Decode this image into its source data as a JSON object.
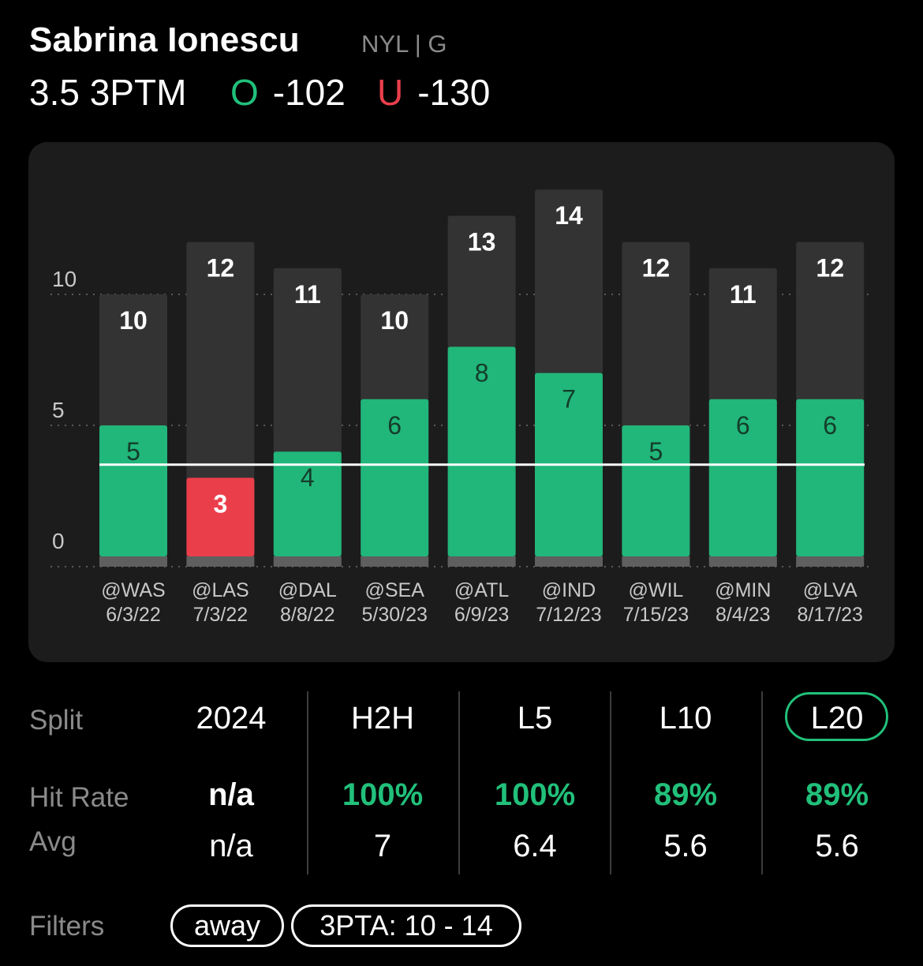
{
  "header": {
    "player_name": "Sabrina Ionescu",
    "team_pos": "NYL | G",
    "line": "3.5 3PTM",
    "over_glyph": "O",
    "over_odds": "-102",
    "under_glyph": "U",
    "under_odds": "-130"
  },
  "colors": {
    "hit": "#21b67a",
    "miss": "#ea3f4b",
    "attempt_bar": "#333333",
    "accent": "#21c07a"
  },
  "chart_data": {
    "type": "bar",
    "y_ticks": [
      "10",
      "5",
      "0"
    ],
    "ylim": [
      0,
      14
    ],
    "threshold": 3.5,
    "grid": true,
    "categories": [
      {
        "opp": "@WAS",
        "date": "6/3/22"
      },
      {
        "opp": "@LAS",
        "date": "7/3/22"
      },
      {
        "opp": "@DAL",
        "date": "8/8/22"
      },
      {
        "opp": "@SEA",
        "date": "5/30/23"
      },
      {
        "opp": "@ATL",
        "date": "6/9/23"
      },
      {
        "opp": "@IND",
        "date": "7/12/23"
      },
      {
        "opp": "@WIL",
        "date": "7/15/23"
      },
      {
        "opp": "@MIN",
        "date": "8/4/23"
      },
      {
        "opp": "@LVA",
        "date": "8/17/23"
      }
    ],
    "series": [
      {
        "values": [
          10,
          12,
          11,
          10,
          13,
          14,
          12,
          11,
          12
        ]
      },
      {
        "values": [
          5,
          3,
          4,
          6,
          8,
          7,
          5,
          6,
          6
        ]
      }
    ]
  },
  "splits": {
    "row_labels": {
      "split": "Split",
      "hit_rate": "Hit Rate",
      "avg": "Avg"
    },
    "columns": [
      {
        "label": "2024",
        "hit_rate": "n/a",
        "avg": "n/a",
        "hit_green": false
      },
      {
        "label": "H2H",
        "hit_rate": "100%",
        "avg": "7",
        "hit_green": true
      },
      {
        "label": "L5",
        "hit_rate": "100%",
        "avg": "6.4",
        "hit_green": true
      },
      {
        "label": "L10",
        "hit_rate": "89%",
        "avg": "5.6",
        "hit_green": true
      },
      {
        "label": "L20",
        "hit_rate": "89%",
        "avg": "5.6",
        "hit_green": true
      }
    ],
    "selected": "L20"
  },
  "filters": {
    "label": "Filters",
    "chips": [
      "away",
      "3PTA: 10 - 14"
    ]
  }
}
